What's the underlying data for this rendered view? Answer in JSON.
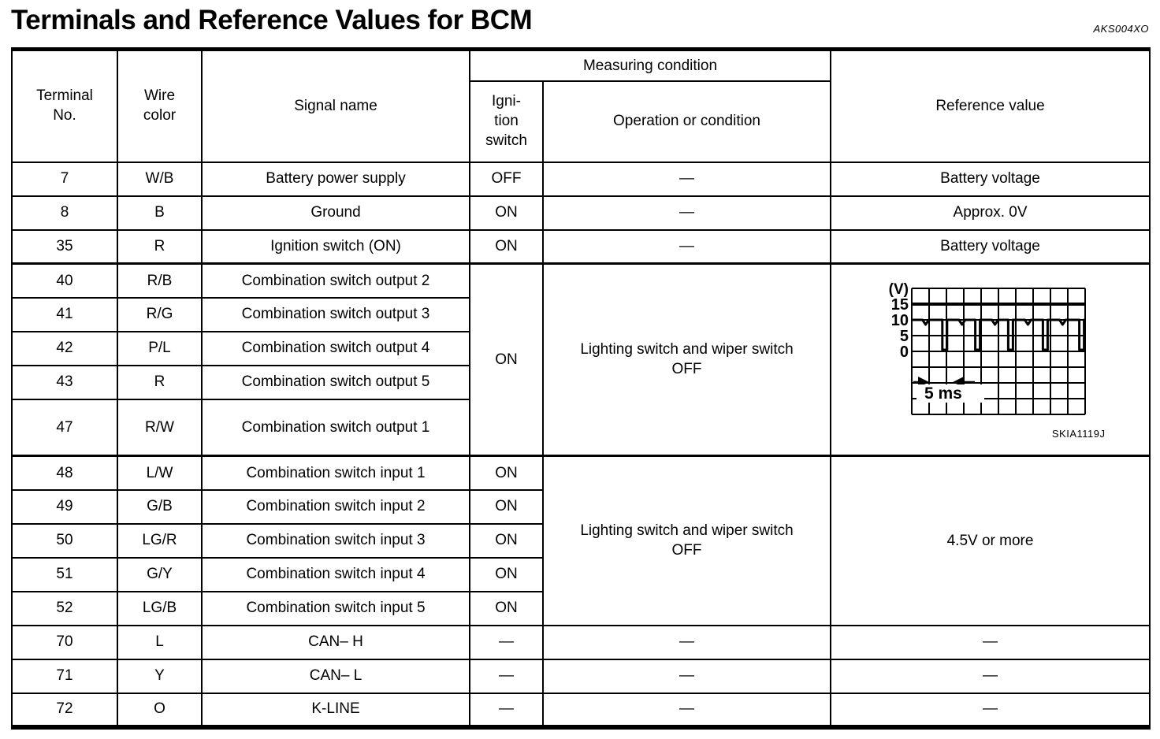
{
  "page": {
    "title": "Terminals and Reference Values for BCM",
    "figure_code": "AKS004XO"
  },
  "table": {
    "header": {
      "terminal": "Terminal\nNo.",
      "wire": "Wire\ncolor",
      "signal": "Signal name",
      "measuring": "Measuring condition",
      "ignition": "Igni-\ntion\nswitch",
      "operation": "Operation or condition",
      "reference": "Reference value"
    },
    "groups": [
      {
        "rows": [
          {
            "terminal": "7",
            "wire": "W/B",
            "signal": "Battery power supply",
            "ignition": "OFF",
            "operation": "—",
            "reference": "Battery voltage"
          },
          {
            "terminal": "8",
            "wire": "B",
            "signal": "Ground",
            "ignition": "ON",
            "operation": "—",
            "reference": "Approx. 0V"
          },
          {
            "terminal": "35",
            "wire": "R",
            "signal": "Ignition switch (ON)",
            "ignition": "ON",
            "operation": "—",
            "reference": "Battery voltage"
          }
        ]
      },
      {
        "rows": [
          {
            "terminal": "40",
            "wire": "R/B",
            "signal": "Combination switch output 2"
          },
          {
            "terminal": "41",
            "wire": "R/G",
            "signal": "Combination switch output 3"
          },
          {
            "terminal": "42",
            "wire": "P/L",
            "signal": "Combination switch output 4"
          },
          {
            "terminal": "43",
            "wire": "R",
            "signal": "Combination switch output 5"
          },
          {
            "terminal": "47",
            "wire": "R/W",
            "signal": "Combination switch output 1"
          }
        ],
        "shared": {
          "ignition": "ON",
          "operation": "Lighting switch and wiper switch\nOFF"
        },
        "reference": "waveform (see oscilloscope image)"
      },
      {
        "rows": [
          {
            "terminal": "48",
            "wire": "L/W",
            "signal": "Combination switch input 1",
            "ignition": "ON"
          },
          {
            "terminal": "49",
            "wire": "G/B",
            "signal": "Combination switch input 2",
            "ignition": "ON"
          },
          {
            "terminal": "50",
            "wire": "LG/R",
            "signal": "Combination switch input 3",
            "ignition": "ON"
          },
          {
            "terminal": "51",
            "wire": "G/Y",
            "signal": "Combination switch input 4",
            "ignition": "ON"
          },
          {
            "terminal": "52",
            "wire": "LG/B",
            "signal": "Combination switch input 5",
            "ignition": "ON"
          }
        ],
        "shared": {
          "operation": "Lighting switch and wiper switch\nOFF",
          "reference": "4.5V or more"
        }
      },
      {
        "rows": [
          {
            "terminal": "70",
            "wire": "L",
            "signal": "CAN– H",
            "ignition": "—",
            "operation": "—",
            "reference": "—"
          },
          {
            "terminal": "71",
            "wire": "Y",
            "signal": "CAN– L",
            "ignition": "—",
            "operation": "—",
            "reference": "—"
          },
          {
            "terminal": "72",
            "wire": "O",
            "signal": "K-LINE",
            "ignition": "—",
            "operation": "—",
            "reference": "—"
          }
        ]
      }
    ]
  },
  "waveform": {
    "type": "line",
    "unit_label": "(V)",
    "y_tick_labels": [
      "15",
      "10",
      "5",
      "0"
    ],
    "y_values_v": [
      15,
      10,
      5,
      0
    ],
    "high_level_v": 10,
    "pulse_low_v": 0.5,
    "pulses_div": [
      1.9,
      3.8,
      5.7,
      7.7,
      9.8
    ],
    "notches_div": [
      0.8,
      2.9,
      4.8,
      6.7,
      8.7
    ],
    "pulse_period_divisions": 2,
    "timebase_label": "5 ms",
    "caption": "SKIA1119J",
    "grid": {
      "cols": 10,
      "rows": 8
    },
    "bold_row_index": 1,
    "description": "Trace rides at approx. 10V with brief negative pulses to approx. 0V every 2 divisions (5 ms)"
  }
}
